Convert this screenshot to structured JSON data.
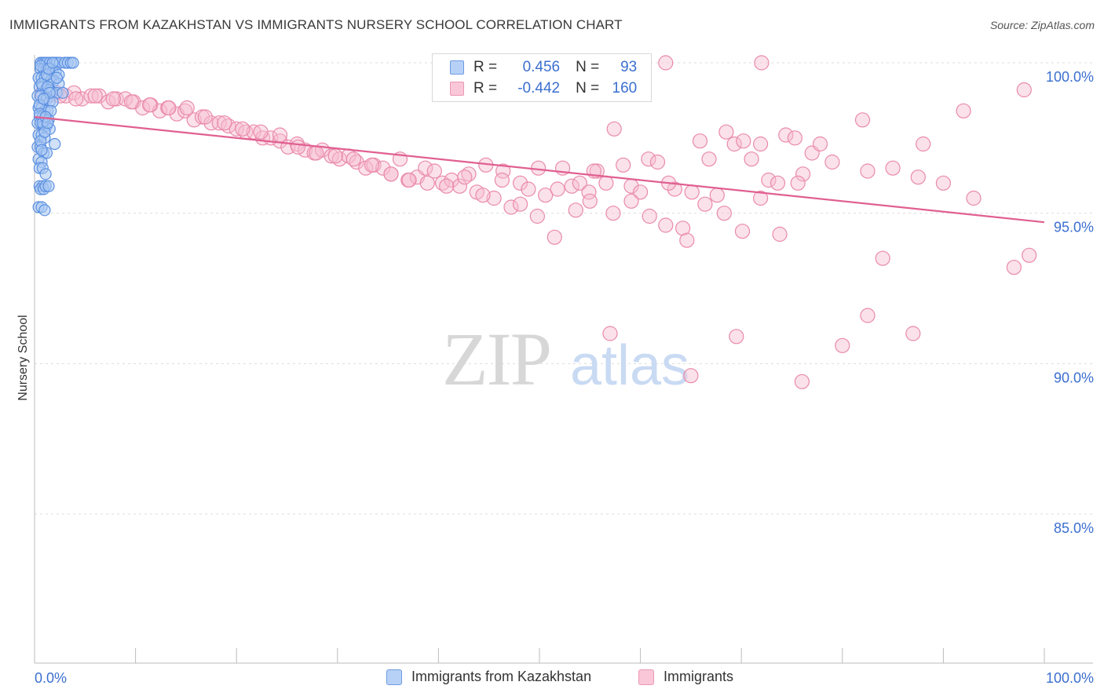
{
  "header": {
    "title": "IMMIGRANTS FROM KAZAKHSTAN VS IMMIGRANTS NURSERY SCHOOL CORRELATION CHART",
    "source": "Source: ZipAtlas.com"
  },
  "watermark": {
    "zip": "ZIP",
    "atlas": "atlas"
  },
  "legend": {
    "r_label": "R =",
    "n_label": "N =",
    "series": [
      {
        "name": "Immigrants from Kazakhstan",
        "r": "0.456",
        "n": "93",
        "fill": "#a9c8f3",
        "stroke": "#5b8fe0",
        "color": "#3b6fcf"
      },
      {
        "name": "Immigrants",
        "r": "-0.442",
        "n": "160",
        "fill": "#f7bcd0",
        "stroke": "#e98aaa",
        "color": "#e05a8a"
      }
    ]
  },
  "chart_data": {
    "type": "scatter",
    "title": "IMMIGRANTS FROM KAZAKHSTAN VS IMMIGRANTS NURSERY SCHOOL CORRELATION CHART",
    "xlabel": "",
    "ylabel": "Nursery School",
    "xlim": [
      0,
      100
    ],
    "ylim": [
      80.5,
      100.8
    ],
    "x_tick_labels": [
      "0.0%",
      "100.0%"
    ],
    "y_ticks": [
      100,
      95,
      90,
      85
    ],
    "y_tick_labels": [
      "100.0%",
      "95.0%",
      "90.0%",
      "85.0%"
    ],
    "grid": "horizontal dashed",
    "legend_placement": "top-center and bottom",
    "series": [
      {
        "name": "Immigrants from Kazakhstan",
        "x": [
          0.6,
          0.8,
          1.0,
          1.2,
          1.5,
          1.8,
          2.0,
          2.2,
          2.5,
          3.0,
          3.3,
          3.6,
          3.8,
          0.6,
          0.9,
          1.2,
          1.5,
          1.8,
          2.1,
          2.4,
          0.4,
          0.7,
          1.0,
          1.3,
          1.6,
          1.9,
          2.4,
          0.5,
          0.8,
          1.1,
          1.4,
          1.7,
          2.2,
          2.8,
          0.3,
          0.6,
          0.9,
          1.2,
          1.5,
          1.8,
          0.4,
          0.7,
          1.0,
          1.3,
          1.6,
          0.5,
          0.8,
          1.1,
          1.4,
          0.3,
          0.6,
          0.9,
          1.2,
          1.5,
          0.4,
          0.7,
          1.0,
          0.3,
          0.6,
          0.9,
          1.2,
          0.4,
          0.7,
          0.5,
          0.8,
          1.1,
          0.5,
          0.8,
          0.6,
          0.9,
          0.4,
          0.7,
          1.0,
          2.0,
          0.6,
          0.7,
          1.1,
          1.4,
          0.6,
          0.7,
          0.5,
          0.5,
          0.8,
          1.0,
          1.3,
          1.5,
          1.2,
          1.4,
          1.8,
          2.2,
          0.9,
          1.1,
          1.3
        ],
        "y": [
          100.0,
          100.0,
          100.0,
          100.0,
          100.0,
          100.0,
          100.0,
          100.0,
          100.0,
          100.0,
          100.0,
          100.0,
          100.0,
          99.8,
          99.8,
          99.8,
          99.8,
          99.7,
          99.7,
          99.6,
          99.5,
          99.5,
          99.5,
          99.5,
          99.4,
          99.4,
          99.3,
          99.2,
          99.2,
          99.1,
          99.1,
          99.0,
          99.0,
          99.0,
          98.9,
          98.9,
          98.8,
          98.8,
          98.7,
          98.7,
          98.5,
          98.5,
          98.4,
          98.4,
          98.4,
          98.2,
          98.2,
          98.1,
          98.1,
          98.0,
          98.0,
          97.9,
          97.9,
          97.8,
          97.6,
          97.6,
          97.5,
          97.2,
          97.2,
          97.0,
          97.0,
          96.8,
          96.7,
          96.5,
          96.5,
          96.3,
          95.9,
          95.9,
          95.8,
          95.8,
          95.2,
          95.2,
          95.1,
          97.3,
          97.4,
          97.1,
          95.9,
          95.9,
          99.9,
          99.3,
          98.6,
          98.3,
          98.0,
          97.7,
          99.2,
          99.0,
          99.6,
          99.8,
          100.0,
          99.5,
          98.8,
          98.2,
          98.0
        ]
      },
      {
        "name": "Immigrants",
        "x": [
          0.8,
          1.4,
          2.2,
          3.1,
          3.9,
          4.7,
          5.6,
          6.4,
          7.3,
          8.1,
          9.0,
          9.8,
          10.7,
          11.5,
          12.4,
          13.2,
          14.1,
          14.9,
          15.8,
          16.6,
          17.5,
          18.3,
          19.2,
          20.0,
          20.9,
          21.7,
          22.6,
          23.4,
          24.3,
          25.1,
          26.0,
          26.8,
          27.7,
          28.5,
          29.4,
          30.2,
          31.1,
          31.9,
          32.8,
          33.6,
          34.5,
          35.3,
          36.2,
          37.0,
          37.9,
          38.7,
          39.6,
          40.4,
          41.3,
          42.1,
          43.0,
          43.8,
          44.7,
          45.5,
          46.4,
          47.2,
          48.1,
          48.9,
          49.8,
          50.6,
          51.5,
          52.3,
          53.2,
          54.0,
          54.9,
          55.7,
          56.6,
          57.4,
          58.3,
          59.1,
          60.0,
          60.8,
          61.7,
          62.5,
          63.4,
          64.2,
          65.1,
          65.9,
          66.8,
          67.6,
          68.5,
          69.3,
          70.2,
          71.0,
          71.9,
          72.7,
          73.6,
          74.4,
          75.3,
          76.1,
          77.0,
          77.8,
          2.5,
          4.1,
          6.0,
          7.8,
          9.6,
          11.4,
          13.3,
          15.1,
          16.9,
          18.8,
          20.6,
          22.4,
          24.3,
          26.1,
          27.9,
          29.8,
          31.6,
          33.4,
          35.3,
          37.1,
          38.9,
          40.8,
          42.6,
          44.4,
          46.3,
          48.1,
          49.9,
          51.8,
          53.6,
          55.4,
          57.3,
          59.1,
          60.9,
          62.8,
          64.6,
          66.4,
          68.3,
          70.1,
          71.9,
          73.8,
          75.6,
          82.0,
          88.0,
          92.0,
          98.0,
          79.0,
          82.5,
          85.0,
          87.5,
          90.0,
          93.0,
          98.5,
          84.0,
          97.0,
          87.0,
          82.5,
          69.5,
          65.0,
          76.0,
          80.0,
          57.0,
          55.0,
          62.5,
          52.0,
          72.0,
          59.5,
          48.0
        ],
        "y": [
          99.0,
          98.9,
          99.0,
          98.9,
          99.0,
          98.8,
          98.9,
          98.9,
          98.7,
          98.8,
          98.8,
          98.7,
          98.5,
          98.6,
          98.4,
          98.5,
          98.3,
          98.4,
          98.1,
          98.2,
          98.0,
          98.0,
          97.9,
          97.8,
          97.7,
          97.7,
          97.5,
          97.5,
          97.4,
          97.2,
          97.3,
          97.1,
          97.0,
          97.1,
          96.9,
          96.8,
          96.9,
          96.7,
          96.5,
          96.6,
          96.5,
          96.3,
          96.8,
          96.1,
          96.2,
          96.5,
          96.4,
          96.0,
          96.1,
          95.9,
          96.3,
          95.7,
          96.6,
          95.5,
          96.4,
          95.2,
          96.0,
          95.8,
          94.9,
          95.6,
          94.2,
          96.5,
          95.9,
          96.0,
          95.7,
          96.4,
          96.0,
          97.8,
          96.6,
          95.9,
          95.7,
          96.8,
          96.7,
          94.6,
          95.8,
          94.5,
          95.7,
          97.4,
          96.8,
          95.6,
          97.7,
          97.3,
          97.4,
          96.8,
          97.3,
          96.1,
          96.0,
          97.6,
          97.5,
          96.3,
          97.0,
          97.3,
          98.9,
          98.8,
          98.9,
          98.8,
          98.7,
          98.6,
          98.5,
          98.5,
          98.2,
          98.0,
          97.8,
          97.7,
          97.6,
          97.2,
          97.0,
          96.9,
          96.8,
          96.6,
          96.3,
          96.1,
          96.0,
          95.9,
          96.2,
          95.6,
          96.1,
          95.3,
          96.5,
          95.8,
          95.1,
          96.4,
          95.0,
          95.4,
          94.9,
          96.0,
          94.1,
          95.3,
          95.0,
          94.4,
          95.5,
          94.3,
          96.0,
          98.1,
          97.3,
          98.4,
          99.1,
          96.7,
          96.4,
          96.5,
          96.2,
          96.0,
          95.5,
          93.6,
          93.5,
          93.2,
          91.0,
          91.6,
          90.9,
          89.6,
          89.4,
          90.6,
          91.0,
          95.4,
          100.0,
          100.0,
          100.0,
          100.0,
          100.0
        ]
      }
    ],
    "trendlines": [
      {
        "name": "Immigrants",
        "x": [
          0,
          100
        ],
        "y": [
          98.2,
          94.7
        ]
      }
    ]
  }
}
